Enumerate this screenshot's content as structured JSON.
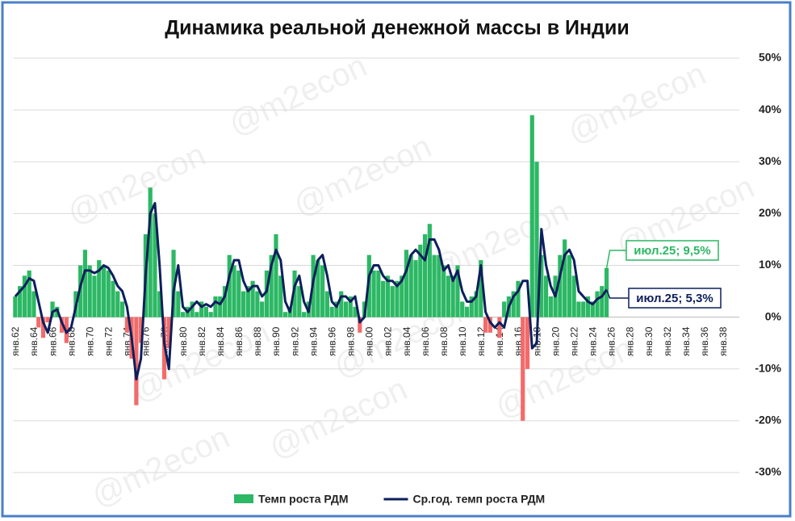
{
  "chart_data": {
    "type": "bar_line",
    "title": "Динамика реальной денежной массы в Индии",
    "watermark": "@m2econ",
    "categories": [
      "янв.62",
      null,
      null,
      null,
      "янв.64",
      null,
      null,
      null,
      "янв.66",
      null,
      null,
      null,
      "янв.68",
      null,
      null,
      null,
      "янв.70",
      null,
      null,
      null,
      "янв.72",
      null,
      null,
      null,
      "янв.74",
      null,
      null,
      null,
      "янв.76",
      null,
      null,
      null,
      "янв.78",
      null,
      null,
      null,
      "янв.80",
      null,
      null,
      null,
      "янв.82",
      null,
      null,
      null,
      "янв.84",
      null,
      null,
      null,
      "янв.86",
      null,
      null,
      null,
      "янв.88",
      null,
      null,
      null,
      "янв.90",
      null,
      null,
      null,
      "янв.92",
      null,
      null,
      null,
      "янв.94",
      null,
      null,
      null,
      "янв.96",
      null,
      null,
      null,
      "янв.98",
      null,
      null,
      null,
      "янв.00",
      null,
      null,
      null,
      "янв.02",
      null,
      null,
      null,
      "янв.04",
      null,
      null,
      null,
      "янв.06",
      null,
      null,
      null,
      "янв.08",
      null,
      null,
      null,
      "янв.10",
      null,
      null,
      null,
      "янв.12",
      null,
      null,
      null,
      "янв.14",
      null,
      null,
      null,
      "янв.16",
      null,
      null,
      null,
      "янв.18",
      null,
      null,
      null,
      "янв.20",
      null,
      null,
      null,
      "янв.22",
      null,
      null,
      null,
      "янв.24",
      null,
      null,
      null,
      "янв.26",
      null,
      null,
      null,
      "янв.28",
      null,
      null,
      null,
      "янв.30",
      null,
      null,
      null,
      "янв.32",
      null,
      null,
      null,
      "янв.34",
      null,
      null,
      null,
      "янв.36",
      null,
      null,
      null,
      "янв.38",
      null,
      null,
      null
    ],
    "series": [
      {
        "name": "Темп роста РДМ",
        "kind": "bar",
        "color": "#2cb864",
        "negative_color": "#f26b6b",
        "values": [
          4,
          6,
          8,
          9,
          5,
          -2,
          -4,
          -1,
          3,
          2,
          -3,
          -5,
          0,
          5,
          10,
          13,
          10,
          8,
          11,
          10,
          9,
          7,
          5,
          3,
          -3,
          -8,
          -17,
          -5,
          16,
          25,
          20,
          5,
          -12,
          -6,
          13,
          5,
          1,
          2,
          3,
          1,
          3,
          2,
          1,
          4,
          4,
          6,
          12,
          10,
          9,
          5,
          6,
          7,
          5,
          3,
          9,
          12,
          16,
          8,
          1,
          2,
          9,
          6,
          1,
          3,
          12,
          11,
          10,
          5,
          2,
          3,
          5,
          3,
          4,
          2,
          -3,
          3,
          12,
          9,
          9,
          7,
          8,
          6,
          7,
          8,
          13,
          12,
          11,
          14,
          16,
          18,
          12,
          12,
          10,
          8,
          8,
          10,
          3,
          2,
          4,
          5,
          11,
          -3,
          -3,
          0,
          -4,
          3,
          4,
          5,
          7,
          -20,
          -10,
          39,
          30,
          12,
          8,
          4,
          8,
          12,
          15,
          12,
          8,
          3,
          3,
          4,
          3,
          5,
          6,
          9.5,
          null,
          null,
          null,
          null,
          null,
          null,
          null,
          null,
          null,
          null,
          null,
          null,
          null,
          null,
          null,
          null,
          null,
          null,
          null,
          null,
          null,
          null,
          null,
          null,
          null,
          null,
          null,
          null
        ]
      },
      {
        "name": "Ср.год. темп роста РДМ",
        "kind": "line",
        "color": "#0d1f5c",
        "values": [
          4,
          5,
          6,
          7.5,
          7,
          3,
          -1,
          -3,
          1,
          1.5,
          -1,
          -3,
          -2,
          2,
          6,
          9,
          9,
          8.5,
          9,
          10,
          9.5,
          8,
          6,
          5,
          2,
          -4,
          -12,
          -8,
          8,
          20,
          22,
          10,
          -5,
          -10,
          5,
          10,
          2,
          1,
          2,
          3,
          2,
          2.5,
          2,
          3,
          2.5,
          4,
          8,
          11,
          11,
          7,
          5,
          6,
          6,
          4,
          5,
          10,
          13,
          11,
          3,
          1,
          6,
          8,
          3,
          1,
          7,
          11,
          12,
          8,
          3,
          2,
          4,
          4,
          3,
          4,
          -1,
          0,
          8,
          10,
          10,
          8,
          7,
          7,
          6,
          7,
          9,
          12,
          13,
          12,
          11,
          15,
          15,
          13,
          9,
          10,
          7,
          9,
          5,
          3,
          3,
          4,
          10,
          1,
          -1,
          -2,
          -1,
          -2,
          2,
          4,
          5,
          7,
          7,
          -6,
          -5,
          17,
          10,
          6,
          4,
          8,
          12,
          13,
          11,
          5,
          4,
          3,
          2.5,
          3.5,
          4,
          5.3,
          null,
          null,
          null,
          null,
          null,
          null,
          null,
          null,
          null,
          null,
          null,
          null,
          null,
          null,
          null,
          null,
          null,
          null,
          null,
          null,
          null,
          null,
          null,
          null,
          null,
          null,
          null,
          null
        ]
      }
    ],
    "annotations": [
      {
        "text": "июл.25; 9,5%",
        "series": 0
      },
      {
        "text": "июл.25; 5,3%",
        "series": 1
      }
    ],
    "ylim": [
      -30,
      50
    ],
    "yticks": [
      {
        "value": -30,
        "label": "-30%"
      },
      {
        "value": -20,
        "label": "-20%"
      },
      {
        "value": -10,
        "label": "-10%"
      },
      {
        "value": 0,
        "label": "0%"
      },
      {
        "value": 10,
        "label": "10%"
      },
      {
        "value": 20,
        "label": "20%"
      },
      {
        "value": 30,
        "label": "30%"
      },
      {
        "value": 40,
        "label": "40%"
      },
      {
        "value": 50,
        "label": "50%"
      }
    ],
    "grid": true,
    "legend": "bottom"
  }
}
